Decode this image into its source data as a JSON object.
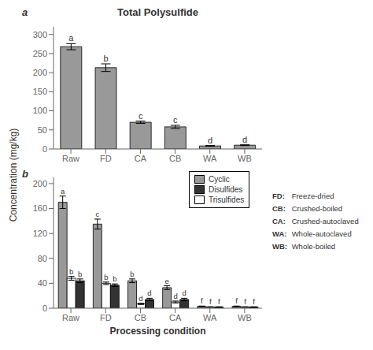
{
  "chart_data": [
    {
      "type": "bar",
      "title": "Total Polysulfide",
      "panel_label": "a",
      "ylabel": "Concentration (mg/kg)",
      "categories": [
        "Raw",
        "FD",
        "CA",
        "CB",
        "WA",
        "WB"
      ],
      "values": [
        268,
        213,
        70,
        58,
        8,
        10
      ],
      "errors": [
        8,
        10,
        3,
        4,
        1,
        1
      ],
      "letters": [
        "a",
        "b",
        "c",
        "c",
        "d",
        "d"
      ],
      "color": "#999999",
      "ylim": [
        0,
        320
      ],
      "yticks": [
        0,
        50,
        100,
        150,
        200,
        250,
        300
      ],
      "grid": false
    },
    {
      "type": "bar",
      "panel_label": "b",
      "xlabel": "Processing condition",
      "categories": [
        "Raw",
        "FD",
        "CB",
        "CA",
        "WA",
        "WB"
      ],
      "series": [
        {
          "name": "Cyclic",
          "color": "#999999",
          "values": [
            170,
            135,
            44,
            33,
            3,
            3
          ],
          "errors": [
            10,
            8,
            3,
            3,
            0.5,
            0.5
          ],
          "letters": [
            "a",
            "c",
            "b",
            "e",
            "f",
            "f"
          ]
        },
        {
          "name": "Trisulfides",
          "color": "#ffffff",
          "values": [
            48,
            40,
            7,
            10,
            2,
            2
          ],
          "errors": [
            3,
            2,
            1,
            1.5,
            0.3,
            0.3
          ],
          "letters": [
            "b",
            "b",
            "d",
            "d",
            "f",
            "f"
          ]
        },
        {
          "name": "Disulfides",
          "color": "#333333",
          "values": [
            44,
            37,
            14,
            14,
            2,
            2
          ],
          "errors": [
            3,
            2,
            2,
            2,
            0.3,
            0.3
          ],
          "letters": [
            "b",
            "b",
            "d",
            "d",
            "f",
            "f"
          ]
        }
      ],
      "ylim": [
        0,
        210
      ],
      "yticks": [
        0,
        40,
        80,
        120,
        160,
        200
      ],
      "grid": false,
      "legend": "upper right",
      "abbreviations": [
        [
          "FD:",
          " Freeze-dried"
        ],
        [
          "CB:",
          " Crushed-boiled"
        ],
        [
          "CA:",
          " Crushed-autoclaved"
        ],
        [
          "WA:",
          " Whole-autoclaved"
        ],
        [
          "WB:",
          " Whole-boiled"
        ]
      ]
    }
  ]
}
